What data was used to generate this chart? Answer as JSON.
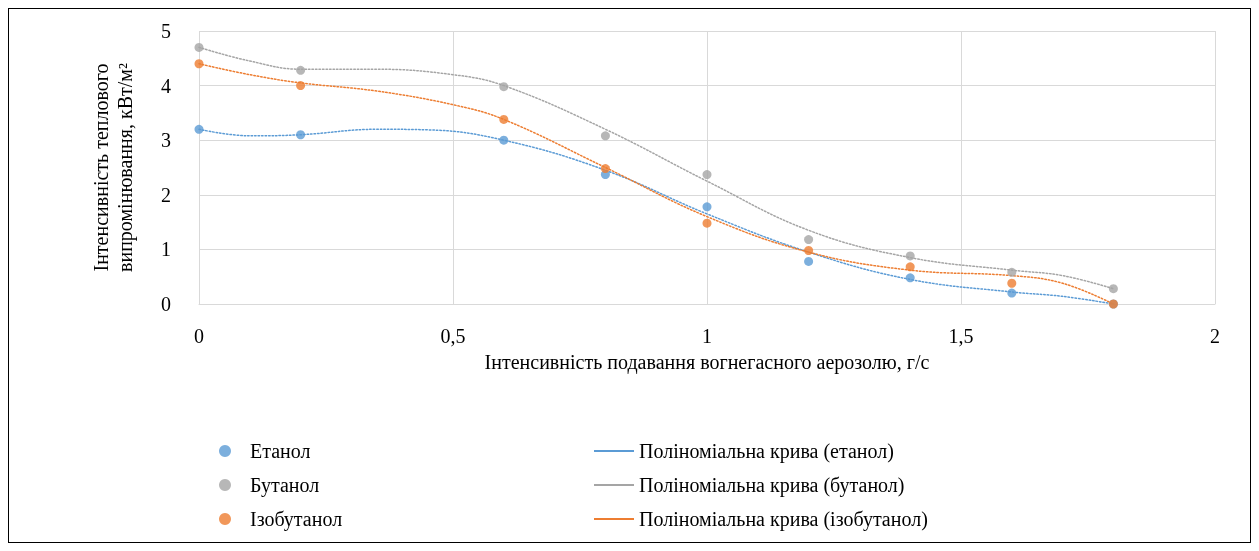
{
  "chart_data": {
    "type": "scatter",
    "xlabel": "Інтенсивність подавання вогнегасного аерозолю, г/с",
    "ylabel": "Інтенсивність теплового\nвипромінювання, кВт/м²",
    "xlim": [
      0,
      2
    ],
    "xticks": [
      0,
      {
        "value": 0.5,
        "label": "0,5"
      },
      1,
      {
        "value": 1.5,
        "label": "1,5"
      },
      2
    ],
    "ylim": [
      0,
      5
    ],
    "yticks": [
      0,
      1,
      2,
      3,
      4,
      5
    ],
    "grid": true,
    "legend": "bottom",
    "marker": "circle",
    "series": [
      {
        "name": "Етанол",
        "color": "#5b9bd5",
        "x": [
          0,
          0.2,
          0.6,
          0.8,
          1.0,
          1.2,
          1.4,
          1.6,
          1.8
        ],
        "values": [
          3.2,
          3.1,
          3.0,
          2.37,
          1.78,
          0.78,
          0.48,
          0.2,
          0
        ]
      },
      {
        "name": "Бутанол",
        "color": "#a5a5a5",
        "x": [
          0,
          0.2,
          0.6,
          0.8,
          1.0,
          1.2,
          1.4,
          1.6,
          1.8
        ],
        "values": [
          4.7,
          4.28,
          3.98,
          3.08,
          2.37,
          1.18,
          0.88,
          0.58,
          0.28
        ]
      },
      {
        "name": "Ізобутанол",
        "color": "#ed7d31",
        "x": [
          0,
          0.2,
          0.6,
          0.8,
          1.0,
          1.2,
          1.4,
          1.6,
          1.8
        ],
        "values": [
          4.4,
          4.0,
          3.38,
          2.48,
          1.48,
          0.98,
          0.68,
          0.38,
          0
        ]
      },
      {
        "name": "Поліноміальна крива (етанол)",
        "type": "line",
        "line_style": "dotted",
        "marker": "none",
        "color": "#5b9bd5",
        "x": [
          0,
          0.1,
          0.2,
          0.35,
          0.45,
          0.6,
          0.8,
          1.0,
          1.2,
          1.4,
          1.6,
          1.7,
          1.8
        ],
        "values": [
          3.2,
          3.08,
          3.1,
          3.2,
          3.19,
          3.0,
          2.45,
          1.65,
          0.95,
          0.45,
          0.22,
          0.14,
          0
        ]
      },
      {
        "name": "Поліноміальна крива (бутанол)",
        "type": "line",
        "line_style": "dotted",
        "marker": "none",
        "color": "#a5a5a5",
        "x": [
          0,
          0.1,
          0.2,
          0.35,
          0.5,
          0.6,
          0.8,
          1.0,
          1.2,
          1.4,
          1.6,
          1.7,
          1.8
        ],
        "values": [
          4.7,
          4.45,
          4.3,
          4.3,
          4.2,
          4.0,
          3.2,
          2.25,
          1.35,
          0.85,
          0.62,
          0.52,
          0.28
        ]
      },
      {
        "name": "Поліноміальна крива (ізобутанол)",
        "type": "line",
        "line_style": "dotted",
        "marker": "none",
        "color": "#ed7d31",
        "x": [
          0,
          0.1,
          0.2,
          0.35,
          0.5,
          0.6,
          0.8,
          1.0,
          1.2,
          1.4,
          1.6,
          1.7,
          1.8
        ],
        "values": [
          4.4,
          4.2,
          4.05,
          3.9,
          3.65,
          3.38,
          2.5,
          1.6,
          0.95,
          0.62,
          0.52,
          0.38,
          0
        ]
      }
    ]
  }
}
